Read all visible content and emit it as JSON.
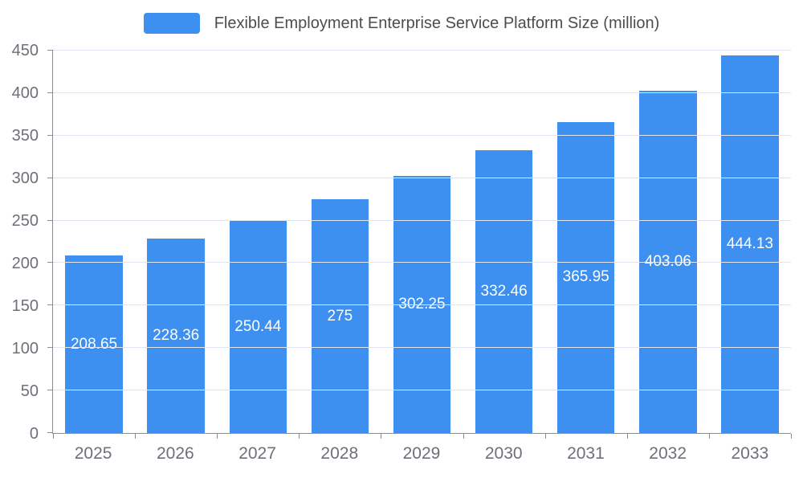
{
  "chart_data": {
    "type": "bar",
    "title": "Flexible Employment Enterprise Service Platform Size (million)",
    "categories": [
      "2025",
      "2026",
      "2027",
      "2028",
      "2029",
      "2030",
      "2031",
      "2032",
      "2033"
    ],
    "values": [
      208.65,
      228.36,
      250.44,
      275,
      302.25,
      332.46,
      365.95,
      403.06,
      444.13
    ],
    "value_labels": [
      "208.65",
      "228.36",
      "250.44",
      "275",
      "302.25",
      "332.46",
      "365.95",
      "403.06",
      "444.13"
    ],
    "xlabel": "",
    "ylabel": "",
    "ylim": [
      0,
      450
    ],
    "ytick_step": 50,
    "grid": true,
    "legend_position": "top",
    "bar_color": "#3D8FF0",
    "bar_label_color": "#FFFFFF",
    "title_color": "#4D4D4D",
    "axis_text_color": "#6E7079",
    "axis_line_color": "#8E8E8E",
    "grid_color": "#E0E6F1",
    "background_color": "#FFFFFF"
  }
}
